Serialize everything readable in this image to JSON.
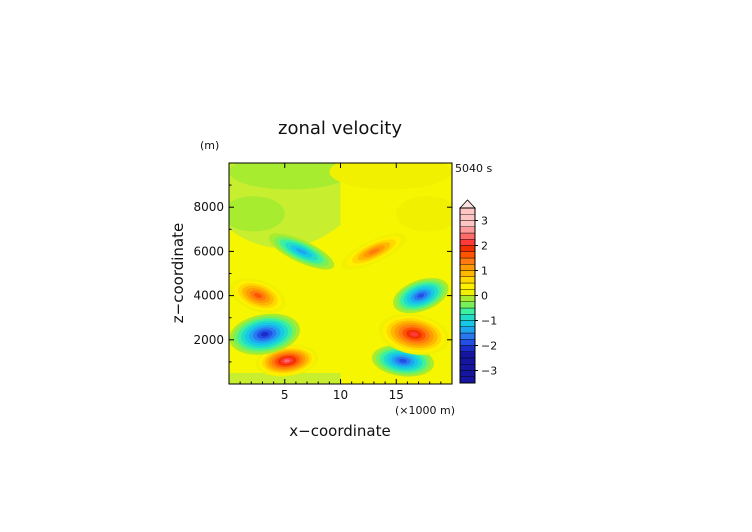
{
  "chart_data": {
    "type": "heatmap",
    "title": "zonal velocity",
    "xlabel": "x−coordinate",
    "ylabel": "z−coordinate",
    "y_unit_label": "(m)",
    "x_unit_label": "(×1000 m)",
    "time_label": "5040 s",
    "xlim": [
      0,
      20
    ],
    "ylim": [
      0,
      10000
    ],
    "x_ticks": [
      5,
      10,
      15
    ],
    "y_ticks": [
      2000,
      4000,
      6000,
      8000
    ],
    "colorbar": {
      "levels": [
        -3.5,
        -3.25,
        -3,
        -2.75,
        -2.5,
        -2.25,
        -2,
        -1.75,
        -1.5,
        -1.25,
        -1,
        -0.75,
        -0.5,
        -0.25,
        0,
        0.25,
        0.5,
        0.75,
        1,
        1.25,
        1.5,
        1.75,
        2,
        2.25,
        2.5,
        2.75,
        3,
        3.25,
        3.5
      ],
      "tick_labels": [
        "3",
        "2",
        "1",
        "0",
        "−1",
        "−2",
        "−3"
      ],
      "tick_values": [
        3,
        2,
        1,
        0,
        -1,
        -2,
        -3
      ],
      "extend": "max"
    },
    "colors": {
      "neg": [
        "#1515a0",
        "#1c2cc8",
        "#2250e6",
        "#2a78f0",
        "#1fa5f0",
        "#16c8e6",
        "#22dcc8",
        "#3cf0a0",
        "#78f05a",
        "#a8ec30"
      ],
      "pos": [
        "#f0f000",
        "#fff000",
        "#ffd800",
        "#ffb800",
        "#ff9a00",
        "#ff7a10",
        "#ff5500",
        "#f03000",
        "#ff3a3a",
        "#ff6a6a",
        "#ff9a9a",
        "#ffc4c4"
      ]
    },
    "cells": [
      {
        "x": 5.2,
        "z": 1050,
        "value": 2.5,
        "rx": 2.8,
        "rz": 700,
        "tilt": -7
      },
      {
        "x": 15.6,
        "z": 1050,
        "value": -2.1,
        "rx": 2.8,
        "rz": 700,
        "tilt": 7
      },
      {
        "x": 3.2,
        "z": 2250,
        "value": -2.3,
        "rx": 3.2,
        "rz": 900,
        "tilt": -10
      },
      {
        "x": 16.6,
        "z": 2250,
        "value": 2.3,
        "rx": 3.2,
        "rz": 900,
        "tilt": 10
      },
      {
        "x": 2.6,
        "z": 4000,
        "value": 1.8,
        "rx": 2.6,
        "rz": 700,
        "tilt": 20
      },
      {
        "x": 17.2,
        "z": 4000,
        "value": -1.9,
        "rx": 2.6,
        "rz": 700,
        "tilt": -20
      },
      {
        "x": 6.5,
        "z": 6000,
        "value": -1.6,
        "rx": 3.2,
        "rz": 500,
        "tilt": 25
      },
      {
        "x": 13.0,
        "z": 6000,
        "value": 1.6,
        "rx": 3.2,
        "rz": 500,
        "tilt": -25
      },
      {
        "x": 5.5,
        "z": 9600,
        "value": -0.2,
        "rx": 5.5,
        "rz": 800,
        "tilt": 0
      },
      {
        "x": 14.5,
        "z": 9600,
        "value": 0.3,
        "rx": 5.5,
        "rz": 800,
        "tilt": 0
      },
      {
        "x": 2.2,
        "z": 7700,
        "value": -0.3,
        "rx": 2.8,
        "rz": 800,
        "tilt": 0
      },
      {
        "x": 17.8,
        "z": 7700,
        "value": 0.3,
        "rx": 2.8,
        "rz": 800,
        "tilt": 0
      }
    ]
  }
}
